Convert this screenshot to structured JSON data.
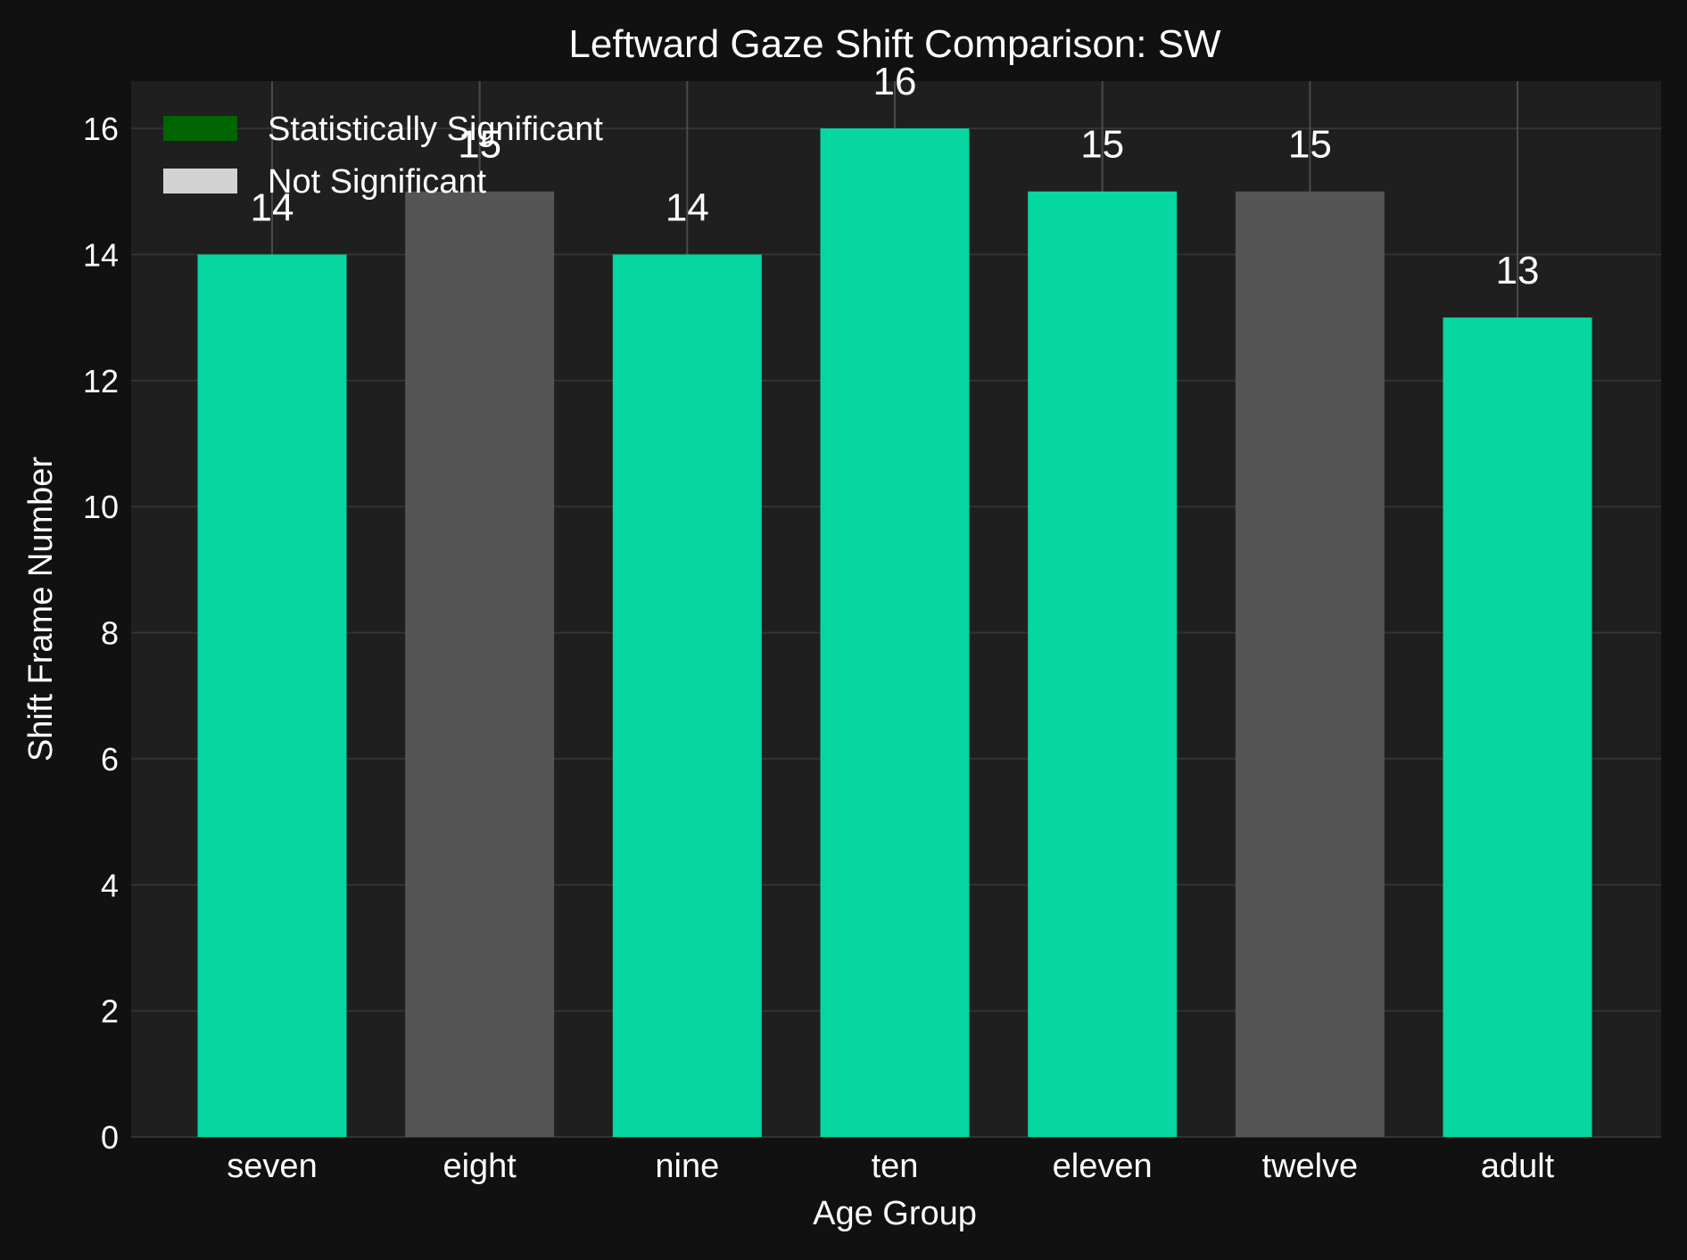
{
  "chart_data": {
    "type": "bar",
    "title": "Leftward Gaze Shift Comparison: SW",
    "xlabel": "Age Group",
    "ylabel": "Shift Frame Number",
    "categories": [
      "seven",
      "eight",
      "nine",
      "ten",
      "eleven",
      "twelve",
      "adult"
    ],
    "values": [
      14,
      15,
      14,
      16,
      15,
      15,
      13
    ],
    "significance": [
      "Statistically Significant",
      "Not Significant",
      "Statistically Significant",
      "Statistically Significant",
      "Statistically Significant",
      "Not Significant",
      "Statistically Significant"
    ],
    "value_labels": [
      "14",
      "15",
      "14",
      "16",
      "15",
      "15",
      "13"
    ],
    "ylim": [
      0,
      16.75
    ],
    "yticks": [
      0,
      2,
      4,
      6,
      8,
      10,
      12,
      14,
      16
    ],
    "ytick_labels": [
      "0",
      "2",
      "4",
      "6",
      "8",
      "10",
      "12",
      "14",
      "16"
    ],
    "grid": true,
    "legend": {
      "placement": "top-left",
      "entries": [
        {
          "label": "Statistically Significant",
          "color": "#006400"
        },
        {
          "label": "Not Significant",
          "color": "#d3d3d3"
        }
      ]
    },
    "colors": {
      "significant_bar": "#06d6a0",
      "not_significant_bar": "#555555",
      "background": "#111111",
      "plot_background": "#1f1f1f",
      "grid": "#333333",
      "text": "#ffffff"
    }
  }
}
